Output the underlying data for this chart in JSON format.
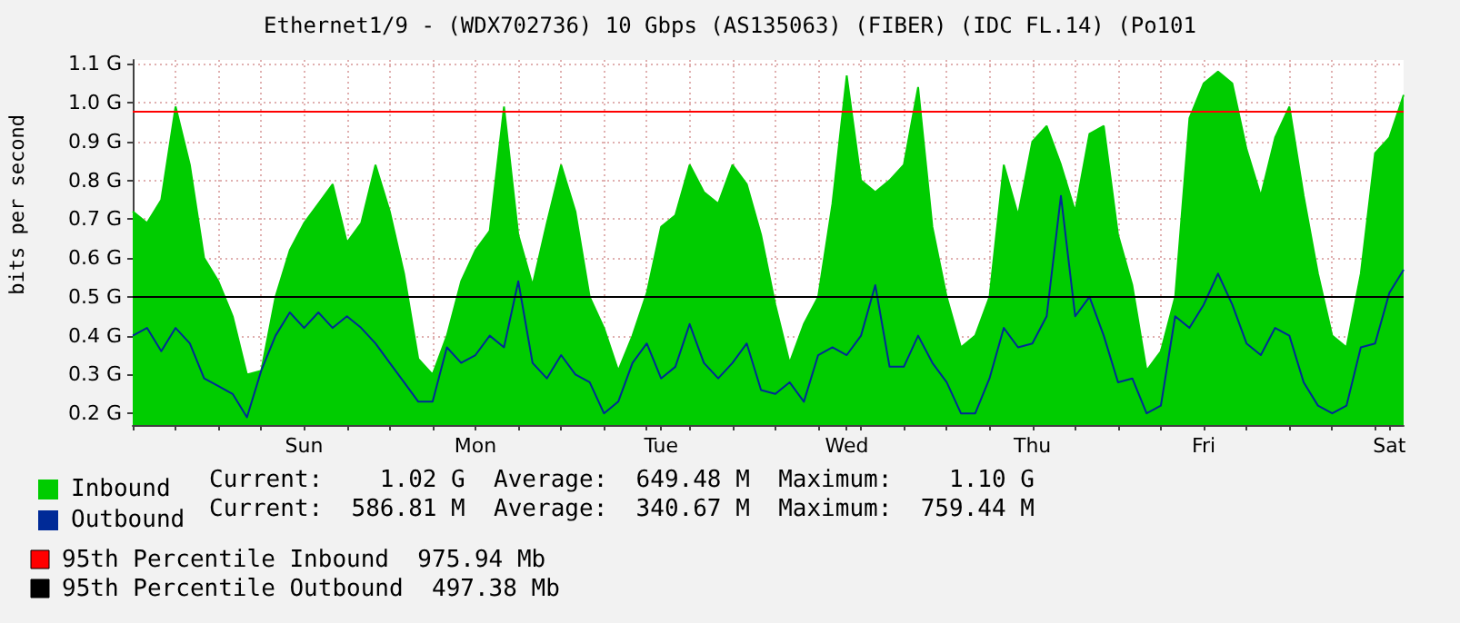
{
  "chart_data": {
    "type": "area",
    "title": "Ethernet1/9 - (WDX702736) 10 Gbps (AS135063) (FIBER) (IDC FL.14) (Po101",
    "ylabel": "bits per second",
    "categories": [
      null,
      null,
      null,
      null,
      null,
      null,
      null,
      null,
      null,
      null,
      null,
      null,
      "Sun",
      null,
      null,
      null,
      null,
      null,
      null,
      null,
      null,
      null,
      null,
      null,
      "Mon",
      null,
      null,
      null,
      null,
      null,
      null,
      null,
      null,
      null,
      null,
      null,
      null,
      "Tue",
      null,
      null,
      null,
      null,
      null,
      null,
      null,
      null,
      null,
      null,
      null,
      null,
      "Wed",
      null,
      null,
      null,
      null,
      null,
      null,
      null,
      null,
      null,
      null,
      null,
      null,
      "Thu",
      null,
      null,
      null,
      null,
      null,
      null,
      null,
      null,
      null,
      null,
      null,
      "Fri",
      null,
      null,
      null,
      null,
      null,
      null,
      null,
      null,
      null,
      null,
      null,
      null,
      "Sat",
      null
    ],
    "series": [
      {
        "name": "Inbound",
        "color": "#00cc00",
        "values": [
          0.72,
          0.69,
          0.75,
          0.99,
          0.84,
          0.6,
          0.54,
          0.45,
          0.3,
          0.31,
          0.5,
          0.62,
          0.69,
          0.74,
          0.79,
          0.64,
          0.69,
          0.84,
          0.72,
          0.56,
          0.34,
          0.3,
          0.4,
          0.54,
          0.62,
          0.67,
          0.99,
          0.66,
          0.53,
          0.69,
          0.84,
          0.72,
          0.5,
          0.42,
          0.31,
          0.4,
          0.51,
          0.68,
          0.71,
          0.84,
          0.77,
          0.74,
          0.84,
          0.79,
          0.66,
          0.48,
          0.33,
          0.43,
          0.5,
          0.74,
          1.07,
          0.8,
          0.77,
          0.8,
          0.84,
          1.04,
          0.68,
          0.5,
          0.37,
          0.4,
          0.5,
          0.84,
          0.71,
          0.9,
          0.94,
          0.84,
          0.72,
          0.92,
          0.94,
          0.66,
          0.53,
          0.31,
          0.36,
          0.5,
          0.96,
          1.05,
          1.08,
          1.05,
          0.88,
          0.76,
          0.91,
          0.99,
          0.76,
          0.56,
          0.4,
          0.37,
          0.56,
          0.87,
          0.91,
          1.02
        ]
      },
      {
        "name": "Outbound",
        "type": "line",
        "color": "#002a97",
        "values": [
          0.4,
          0.42,
          0.36,
          0.42,
          0.38,
          0.29,
          0.27,
          0.25,
          0.19,
          0.31,
          0.4,
          0.46,
          0.42,
          0.46,
          0.42,
          0.45,
          0.42,
          0.38,
          0.33,
          0.28,
          0.23,
          0.23,
          0.37,
          0.33,
          0.35,
          0.4,
          0.37,
          0.54,
          0.33,
          0.29,
          0.35,
          0.3,
          0.28,
          0.2,
          0.23,
          0.33,
          0.38,
          0.29,
          0.32,
          0.43,
          0.33,
          0.29,
          0.33,
          0.38,
          0.26,
          0.25,
          0.28,
          0.23,
          0.35,
          0.37,
          0.35,
          0.4,
          0.53,
          0.32,
          0.32,
          0.4,
          0.33,
          0.28,
          0.2,
          0.2,
          0.29,
          0.42,
          0.37,
          0.38,
          0.45,
          0.76,
          0.45,
          0.5,
          0.4,
          0.28,
          0.29,
          0.2,
          0.22,
          0.45,
          0.42,
          0.48,
          0.56,
          0.48,
          0.38,
          0.35,
          0.42,
          0.4,
          0.28,
          0.22,
          0.2,
          0.22,
          0.37,
          0.38,
          0.51,
          0.57
        ]
      }
    ],
    "ylim": [
      0.17,
      1.11
    ],
    "yticks": [
      {
        "value": 0.2,
        "label": "0.2 G"
      },
      {
        "value": 0.3,
        "label": "0.3 G"
      },
      {
        "value": 0.4,
        "label": "0.4 G"
      },
      {
        "value": 0.5,
        "label": "0.5 G"
      },
      {
        "value": 0.6,
        "label": "0.6 G"
      },
      {
        "value": 0.7,
        "label": "0.7 G"
      },
      {
        "value": 0.8,
        "label": "0.8 G"
      },
      {
        "value": 0.9,
        "label": "0.9 G"
      },
      {
        "value": 1.0,
        "label": "1.0 G"
      },
      {
        "value": 1.1,
        "label": "1.1 G"
      }
    ],
    "ref_lines": [
      {
        "axis": "y",
        "value": 0.97594,
        "label": "95th Percentile Inbound  975.94 Mb",
        "color": "#ff0000"
      },
      {
        "axis": "y",
        "value": 0.49738,
        "label": "95th Percentile Outbound  497.38 Mb",
        "color": "#000000"
      }
    ],
    "annotations": [
      "Current:    1.02 G  Average:  649.48 M  Maximum:    1.10 G",
      "Current:  586.81 M  Average:  340.67 M  Maximum:  759.44 M"
    ],
    "grid": true,
    "legend": "bottom left",
    "marker": "none"
  }
}
